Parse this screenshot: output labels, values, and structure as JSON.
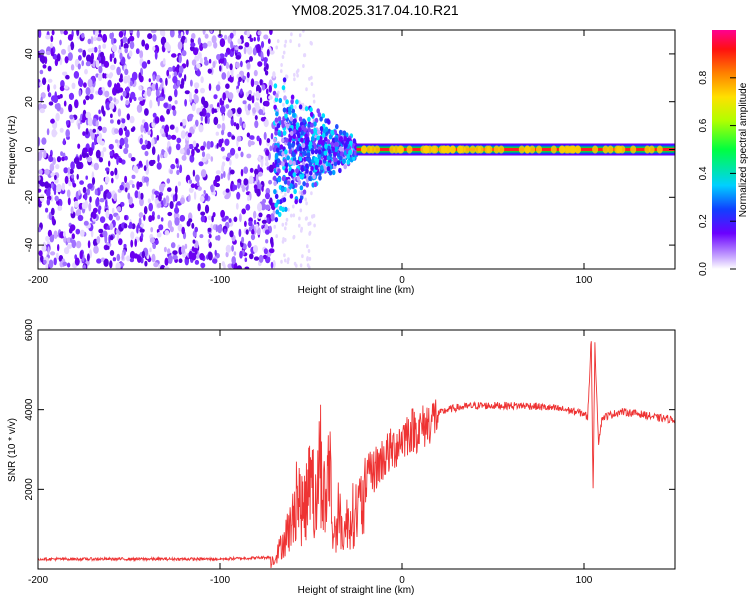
{
  "title": "YM08.2025.317.04.10.R21",
  "chart_data": [
    {
      "type": "heatmap",
      "xlabel": "Height of straight line (km)",
      "ylabel": "Frequency (Hz)",
      "xlim": [
        -200,
        150
      ],
      "ylim": [
        -50,
        50
      ],
      "xticks": [
        -200,
        -100,
        0,
        100
      ],
      "yticks": [
        -40,
        -20,
        0,
        20,
        40
      ],
      "colorbar": {
        "label": "Normalized spectral amplitude",
        "range": [
          0,
          1
        ],
        "ticks": [
          0.0,
          0.2,
          0.4,
          0.6,
          0.8
        ]
      },
      "features": {
        "noise_region_x": [
          -200,
          -70
        ],
        "turbulent_region_x": [
          -70,
          -25
        ],
        "carrier_line_x": [
          -25,
          150
        ],
        "carrier_frequency": 0
      }
    },
    {
      "type": "line",
      "xlabel": "Height of straight line (km)",
      "ylabel": "SNR (10 * v/v)",
      "xlim": [
        -200,
        150
      ],
      "ylim": [
        0,
        6000
      ],
      "xticks": [
        -200,
        -100,
        0,
        100
      ],
      "yticks": [
        2000,
        4000,
        6000
      ],
      "color": "#ee3333",
      "series": [
        {
          "x": [
            -200,
            -150,
            -100,
            -80,
            -70,
            -65,
            -60,
            -58,
            -55,
            -52,
            -50,
            -48,
            -45,
            -42,
            -40,
            -38,
            -35,
            -32,
            -30,
            -25,
            -20,
            -15,
            -10,
            -5,
            0,
            5,
            10,
            15,
            20,
            25,
            30,
            40,
            50,
            60,
            70,
            80,
            90,
            95,
            100,
            102,
            104,
            105,
            106,
            108,
            110,
            120,
            130,
            140,
            150
          ],
          "values": [
            250,
            250,
            250,
            280,
            300,
            900,
            1500,
            2500,
            1800,
            2200,
            4300,
            1600,
            3600,
            1800,
            3800,
            900,
            1700,
            1100,
            1500,
            1800,
            2200,
            2500,
            2800,
            3000,
            3300,
            3500,
            3500,
            3700,
            3900,
            4000,
            4050,
            4100,
            4100,
            4100,
            4100,
            4050,
            4000,
            3950,
            3900,
            3800,
            5800,
            2000,
            5600,
            3200,
            3800,
            3950,
            3900,
            3800,
            3750
          ]
        }
      ]
    }
  ]
}
